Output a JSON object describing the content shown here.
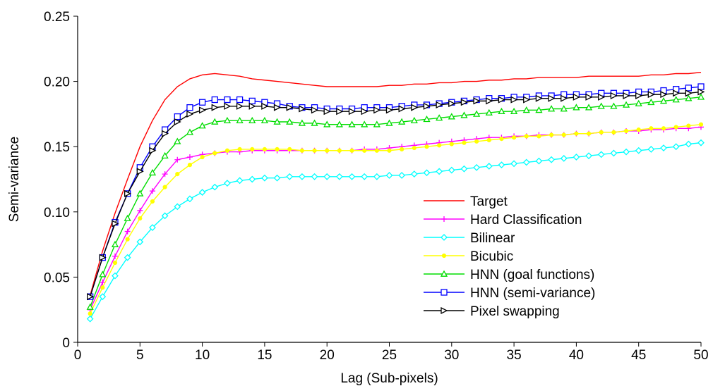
{
  "chart_data": {
    "type": "line",
    "title": "",
    "xlabel": "Lag (Sub-pixels)",
    "ylabel": "Semi-variance",
    "xlim": [
      0,
      50
    ],
    "ylim": [
      0,
      0.25
    ],
    "xticks": [
      0,
      5,
      10,
      15,
      20,
      25,
      30,
      35,
      40,
      45,
      50
    ],
    "yticks": [
      0,
      0.05,
      0.1,
      0.15,
      0.2,
      0.25
    ],
    "xtick_labels": [
      "0",
      "5",
      "10",
      "15",
      "20",
      "25",
      "30",
      "35",
      "40",
      "45",
      "50"
    ],
    "ytick_labels": [
      "0",
      "0.05",
      "0.10",
      "0.15",
      "0.20",
      "0.25"
    ],
    "grid": false,
    "legend_position": "lower-right",
    "x": [
      1,
      2,
      3,
      4,
      5,
      6,
      7,
      8,
      9,
      10,
      11,
      12,
      13,
      14,
      15,
      16,
      17,
      18,
      19,
      20,
      21,
      22,
      23,
      24,
      25,
      26,
      27,
      28,
      29,
      30,
      31,
      32,
      33,
      34,
      35,
      36,
      37,
      38,
      39,
      40,
      41,
      42,
      43,
      44,
      45,
      46,
      47,
      48,
      49,
      50
    ],
    "series": [
      {
        "name": "Target",
        "color": "#ff0000",
        "marker": "none",
        "values": [
          0.036,
          0.07,
          0.099,
          0.125,
          0.15,
          0.17,
          0.186,
          0.196,
          0.202,
          0.205,
          0.206,
          0.205,
          0.204,
          0.202,
          0.201,
          0.2,
          0.199,
          0.198,
          0.197,
          0.196,
          0.196,
          0.196,
          0.196,
          0.196,
          0.197,
          0.197,
          0.198,
          0.198,
          0.199,
          0.199,
          0.2,
          0.2,
          0.201,
          0.201,
          0.202,
          0.202,
          0.203,
          0.203,
          0.203,
          0.203,
          0.204,
          0.204,
          0.204,
          0.204,
          0.204,
          0.205,
          0.205,
          0.206,
          0.206,
          0.207
        ]
      },
      {
        "name": "Hard Classification",
        "color": "#ff00ff",
        "marker": "plus",
        "values": [
          0.025,
          0.046,
          0.066,
          0.085,
          0.101,
          0.116,
          0.129,
          0.14,
          0.142,
          0.144,
          0.145,
          0.146,
          0.146,
          0.147,
          0.147,
          0.147,
          0.147,
          0.147,
          0.147,
          0.147,
          0.147,
          0.147,
          0.148,
          0.148,
          0.149,
          0.15,
          0.151,
          0.152,
          0.153,
          0.154,
          0.155,
          0.156,
          0.157,
          0.157,
          0.158,
          0.158,
          0.159,
          0.159,
          0.159,
          0.16,
          0.16,
          0.161,
          0.161,
          0.162,
          0.162,
          0.163,
          0.163,
          0.164,
          0.164,
          0.165
        ]
      },
      {
        "name": "Bilinear",
        "color": "#00ffff",
        "marker": "diamond",
        "values": [
          0.018,
          0.035,
          0.051,
          0.065,
          0.077,
          0.088,
          0.097,
          0.104,
          0.11,
          0.115,
          0.119,
          0.122,
          0.124,
          0.125,
          0.126,
          0.126,
          0.127,
          0.127,
          0.127,
          0.127,
          0.127,
          0.127,
          0.127,
          0.127,
          0.128,
          0.128,
          0.129,
          0.13,
          0.131,
          0.132,
          0.133,
          0.134,
          0.135,
          0.136,
          0.137,
          0.138,
          0.139,
          0.14,
          0.141,
          0.142,
          0.143,
          0.144,
          0.145,
          0.146,
          0.147,
          0.148,
          0.149,
          0.15,
          0.152,
          0.153
        ]
      },
      {
        "name": "Bicubic",
        "color": "#ffff00",
        "marker": "dot",
        "values": [
          0.022,
          0.042,
          0.061,
          0.079,
          0.095,
          0.108,
          0.119,
          0.129,
          0.136,
          0.142,
          0.145,
          0.147,
          0.148,
          0.148,
          0.148,
          0.148,
          0.148,
          0.147,
          0.147,
          0.147,
          0.147,
          0.147,
          0.147,
          0.147,
          0.147,
          0.148,
          0.149,
          0.15,
          0.151,
          0.152,
          0.153,
          0.154,
          0.155,
          0.156,
          0.157,
          0.158,
          0.158,
          0.159,
          0.159,
          0.16,
          0.16,
          0.161,
          0.161,
          0.162,
          0.163,
          0.164,
          0.164,
          0.165,
          0.166,
          0.167
        ]
      },
      {
        "name": "HNN (goal functions)",
        "color": "#00dd00",
        "marker": "triangle",
        "values": [
          0.027,
          0.052,
          0.075,
          0.095,
          0.114,
          0.13,
          0.143,
          0.154,
          0.161,
          0.166,
          0.169,
          0.17,
          0.17,
          0.17,
          0.17,
          0.169,
          0.169,
          0.168,
          0.168,
          0.167,
          0.167,
          0.167,
          0.167,
          0.167,
          0.168,
          0.169,
          0.17,
          0.171,
          0.172,
          0.173,
          0.174,
          0.175,
          0.176,
          0.177,
          0.177,
          0.178,
          0.178,
          0.179,
          0.179,
          0.18,
          0.18,
          0.181,
          0.181,
          0.182,
          0.183,
          0.184,
          0.185,
          0.186,
          0.187,
          0.188
        ]
      },
      {
        "name": "HNN (semi-variance)",
        "color": "#0000ff",
        "marker": "square",
        "values": [
          0.035,
          0.065,
          0.092,
          0.114,
          0.134,
          0.15,
          0.163,
          0.173,
          0.18,
          0.184,
          0.186,
          0.186,
          0.186,
          0.185,
          0.184,
          0.183,
          0.181,
          0.18,
          0.18,
          0.179,
          0.179,
          0.179,
          0.18,
          0.18,
          0.18,
          0.181,
          0.182,
          0.182,
          0.183,
          0.184,
          0.185,
          0.186,
          0.187,
          0.187,
          0.188,
          0.188,
          0.189,
          0.189,
          0.19,
          0.19,
          0.19,
          0.191,
          0.191,
          0.191,
          0.192,
          0.192,
          0.193,
          0.194,
          0.195,
          0.196
        ]
      },
      {
        "name": "Pixel swapping",
        "color": "#000000",
        "marker": "triangle-right",
        "values": [
          0.035,
          0.065,
          0.091,
          0.114,
          0.131,
          0.147,
          0.16,
          0.169,
          0.175,
          0.178,
          0.18,
          0.181,
          0.181,
          0.181,
          0.181,
          0.18,
          0.18,
          0.179,
          0.178,
          0.177,
          0.177,
          0.177,
          0.177,
          0.178,
          0.178,
          0.179,
          0.18,
          0.181,
          0.182,
          0.183,
          0.184,
          0.185,
          0.185,
          0.186,
          0.186,
          0.186,
          0.187,
          0.187,
          0.187,
          0.188,
          0.188,
          0.188,
          0.189,
          0.189,
          0.189,
          0.19,
          0.19,
          0.191,
          0.191,
          0.192
        ]
      }
    ]
  }
}
